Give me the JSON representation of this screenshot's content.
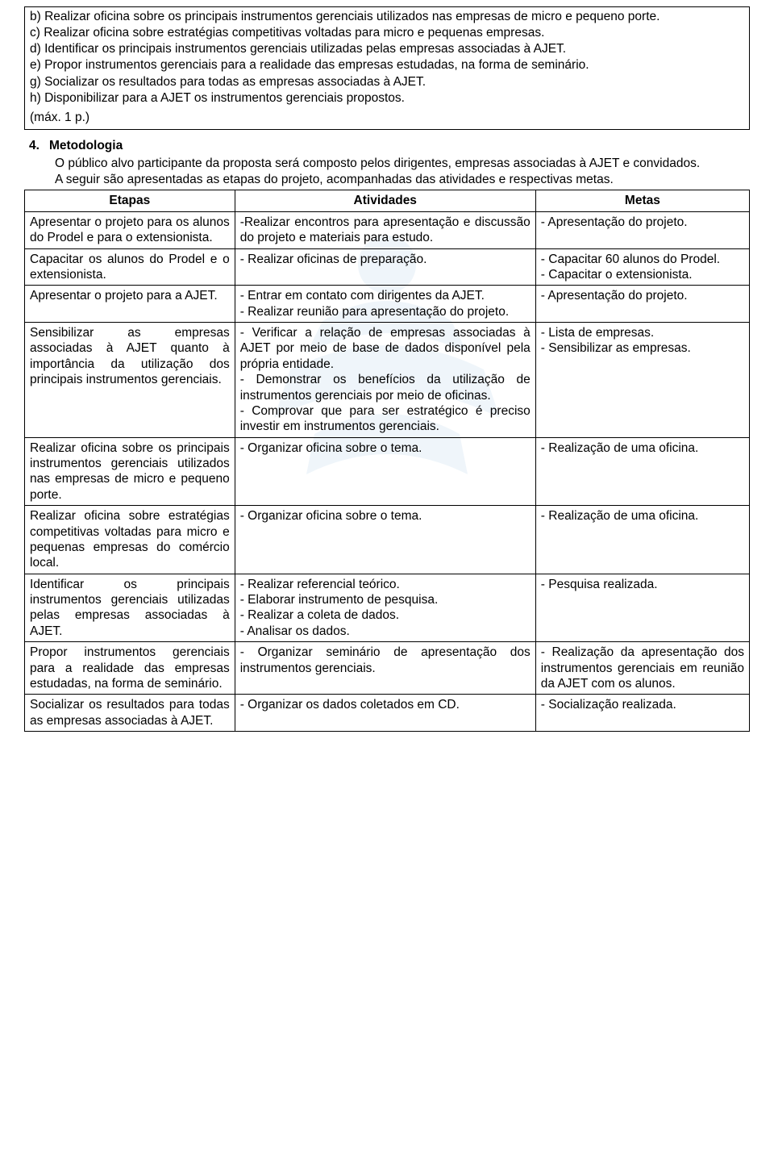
{
  "objectives": {
    "items": [
      "b) Realizar oficina sobre os principais instrumentos gerenciais utilizados nas empresas de micro e pequeno porte.",
      "c) Realizar oficina sobre estratégias competitivas voltadas para micro e pequenas empresas.",
      "d) Identificar os principais instrumentos gerenciais utilizadas pelas empresas associadas à AJET.",
      "e) Propor instrumentos gerenciais para a realidade das empresas estudadas, na forma de seminário.",
      "g) Socializar os resultados para todas as empresas associadas à AJET.",
      "h) Disponibilizar para a AJET os instrumentos gerenciais propostos."
    ],
    "note": "(máx. 1 p.)"
  },
  "section4": {
    "num": "4.",
    "title": "Metodologia",
    "paragraphs": [
      "O público alvo participante da proposta será composto pelos dirigentes, empresas associadas à AJET e convidados.",
      "A seguir são apresentadas as etapas do projeto, acompanhadas das atividades e respectivas metas."
    ]
  },
  "table": {
    "columns": [
      "Etapas",
      "Atividades",
      "Metas"
    ],
    "rows": [
      {
        "etapa": "Apresentar o projeto para os alunos do Prodel e para o extensionista.",
        "atividades": "-Realizar encontros para apresentação e discussão do projeto e materiais para estudo.",
        "metas": "- Apresentação do projeto."
      },
      {
        "etapa": "Capacitar os alunos do Prodel e o extensionista.",
        "atividades": "- Realizar oficinas de preparação.",
        "metas": "- Capacitar 60 alunos do Prodel.\n- Capacitar o extensionista."
      },
      {
        "etapa": "Apresentar o projeto para a AJET.",
        "atividades": "- Entrar em contato com dirigentes da AJET.\n- Realizar reunião para apresentação do projeto.",
        "metas": "- Apresentação do projeto."
      },
      {
        "etapa": "Sensibilizar as empresas associadas à AJET quanto à importância da utilização dos principais instrumentos gerenciais.",
        "atividades": "- Verificar a relação de empresas associadas à AJET por meio de base de dados disponível pela própria entidade.\n- Demonstrar os benefícios da utilização de instrumentos gerenciais por meio de oficinas.\n- Comprovar que para ser estratégico é preciso investir em instrumentos gerenciais.",
        "metas": "- Lista de empresas.\n- Sensibilizar as empresas."
      },
      {
        "etapa": "Realizar oficina sobre os principais instrumentos gerenciais utilizados nas empresas de micro e pequeno porte.",
        "atividades": "- Organizar oficina sobre o tema.",
        "metas": "- Realização de uma oficina."
      },
      {
        "etapa": "Realizar oficina sobre estratégias competitivas voltadas para micro e pequenas empresas do comércio local.",
        "atividades": "- Organizar oficina sobre o tema.",
        "metas": "- Realização de uma oficina."
      },
      {
        "etapa": "Identificar os principais instrumentos gerenciais utilizadas pelas empresas associadas à AJET.",
        "atividades": "- Realizar referencial teórico.\n- Elaborar instrumento de pesquisa.\n- Realizar a coleta de dados.\n- Analisar os dados.",
        "metas": "- Pesquisa realizada."
      },
      {
        "etapa": "Propor instrumentos gerenciais para a realidade das empresas estudadas, na forma de seminário.",
        "atividades": "- Organizar seminário de apresentação dos instrumentos gerenciais.",
        "metas": "- Realização da apresentação dos instrumentos gerenciais em reunião da AJET com os alunos."
      },
      {
        "etapa": "Socializar os resultados para todas as empresas associadas à AJET.",
        "atividades": "- Organizar os dados coletados em CD.",
        "metas": "- Socialização realizada."
      }
    ],
    "styling": {
      "border_color": "#000000",
      "header_bg": "#ffffff",
      "font_family": "Arial",
      "font_size_pt": 11.5,
      "col_widths_pct": [
        29,
        41.5,
        29.5
      ],
      "etapa_align": "justify",
      "atividades_align": "justify",
      "metas_align_rows": [
        "left",
        "justify",
        "left",
        "left",
        "justify",
        "justify",
        "left",
        "justify",
        "left"
      ]
    }
  }
}
